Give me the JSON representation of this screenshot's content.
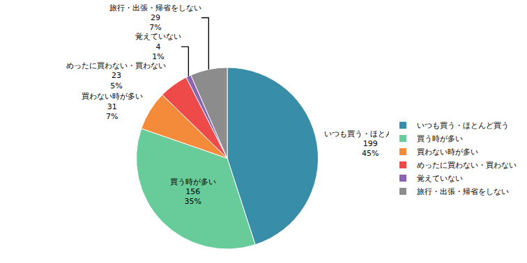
{
  "chart_data": {
    "type": "pie",
    "categories": [
      "いつも買う・ほとんど買う",
      "買う時が多い",
      "買わない時が多い",
      "めったに買わない・買わない",
      "覚えていない",
      "旅行・出張・帰省をしない"
    ],
    "values": [
      199,
      156,
      31,
      23,
      4,
      29
    ],
    "percent_labels": [
      "45%",
      "35%",
      "7%",
      "5%",
      "1%",
      "7%"
    ],
    "colors": [
      "#388ea9",
      "#68cc9a",
      "#f38b3a",
      "#ee4a4a",
      "#8c62b3",
      "#8c8c8c"
    ],
    "data_labels": true,
    "legend": "right"
  }
}
